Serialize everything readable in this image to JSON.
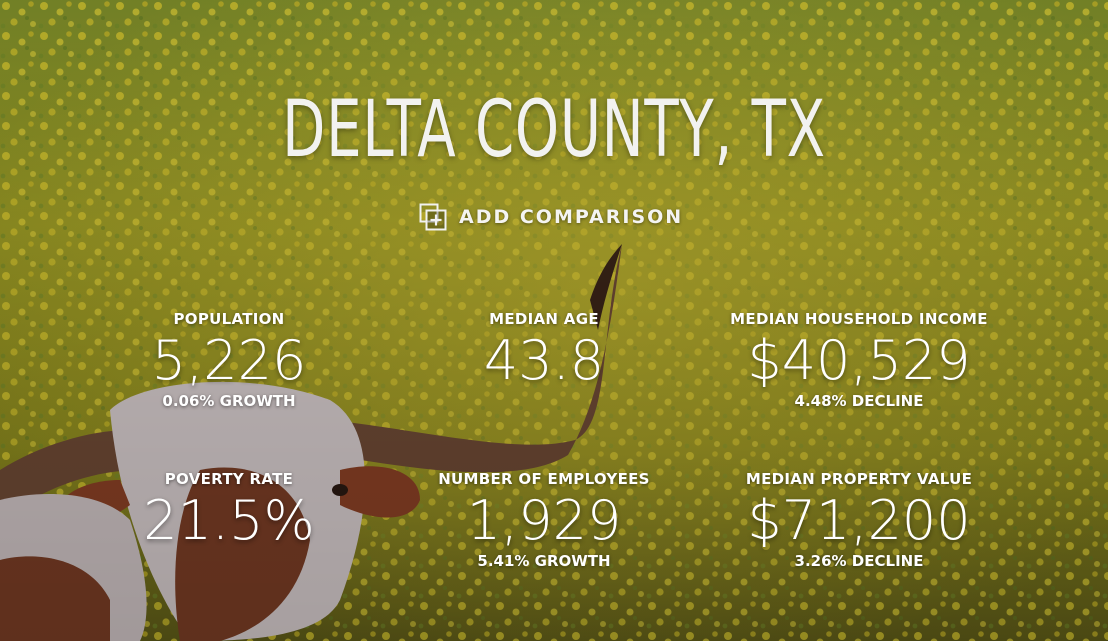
{
  "page": {
    "title": "DELTA COUNTY, TX",
    "add_comparison_label": "ADD COMPARISON",
    "background": {
      "field_color": "#8a8a22",
      "flower_color": "#d9c62a",
      "cow_brown": "#6b3420",
      "cow_white": "#d9cfd0"
    }
  },
  "stats": [
    {
      "label": "POPULATION",
      "value": "5,226",
      "change": "0.06% GROWTH"
    },
    {
      "label": "MEDIAN AGE",
      "value": "43.8",
      "change": ""
    },
    {
      "label": "MEDIAN HOUSEHOLD INCOME",
      "value": "$40,529",
      "change": "4.48% DECLINE"
    },
    {
      "label": "POVERTY RATE",
      "value": "21.5%",
      "change": ""
    },
    {
      "label": "NUMBER OF EMPLOYEES",
      "value": "1,929",
      "change": "5.41% GROWTH"
    },
    {
      "label": "MEDIAN PROPERTY VALUE",
      "value": "$71,200",
      "change": "3.26% DECLINE"
    }
  ],
  "icons": {
    "add_comparison": "add-comparison-icon"
  }
}
